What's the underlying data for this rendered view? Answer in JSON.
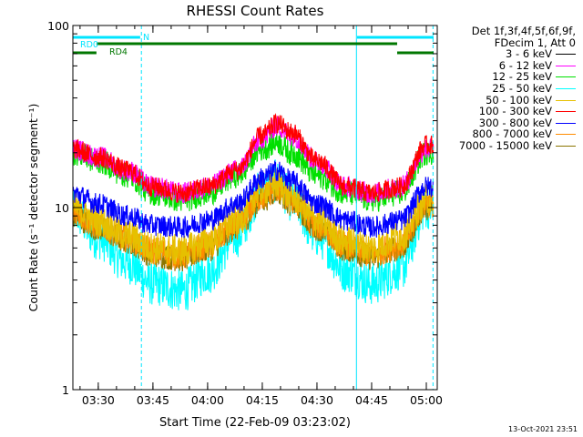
{
  "chart_data": {
    "type": "line",
    "title": "RHESSI Count Rates",
    "xlabel": "Start Time (22-Feb-09 03:23:02)",
    "ylabel": "Count Rate (s⁻¹ detector segment⁻¹)",
    "yscale": "log",
    "ylim": [
      1,
      100
    ],
    "xlim": [
      "03:23:02",
      "05:03:00"
    ],
    "x_ticks": [
      "03:30",
      "03:45",
      "04:00",
      "04:15",
      "04:30",
      "04:45",
      "05:00"
    ],
    "y_ticks": [
      "1",
      "10",
      "100"
    ],
    "grid": false,
    "legend_placement": "right",
    "legend_header": [
      "Det 1f,3f,4f,5f,6f,9f,",
      "FDecim 1, Att 0"
    ],
    "x_profile": [
      "03:23",
      "03:30",
      "03:38",
      "03:45",
      "03:53",
      "04:00",
      "04:08",
      "04:15",
      "04:19",
      "04:23",
      "04:30",
      "04:38",
      "04:45",
      "04:53",
      "05:00"
    ],
    "series": [
      {
        "name": "3 - 6 keV",
        "color": "#000000",
        "visible": false,
        "values": []
      },
      {
        "name": "6 - 12 keV",
        "color": "#ff00ff",
        "values": [
          21,
          19,
          16,
          13,
          12,
          13,
          16,
          24,
          28,
          25,
          18,
          13,
          12,
          13,
          21
        ]
      },
      {
        "name": "12 - 25 keV",
        "color": "#00e000",
        "values": [
          20,
          18,
          15,
          12,
          11,
          12,
          15,
          21,
          23,
          20,
          15,
          12,
          11,
          12,
          20
        ]
      },
      {
        "name": "25 - 50 keV",
        "color": "#00ffff",
        "values": [
          9.5,
          6.8,
          5.0,
          3.8,
          3.5,
          4.4,
          7.0,
          12.5,
          14,
          11,
          7.0,
          4.5,
          3.8,
          4.6,
          10
        ]
      },
      {
        "name": "50 - 100 keV",
        "color": "#e6c000",
        "values": [
          10,
          8.5,
          7.0,
          6.0,
          5.8,
          6.5,
          8.5,
          12.5,
          13.5,
          11.5,
          8.5,
          6.5,
          6.0,
          7.0,
          11
        ]
      },
      {
        "name": "100 - 300 keV",
        "color": "#ff0000",
        "values": [
          21,
          19,
          16,
          13,
          12,
          13,
          16,
          25,
          29,
          26,
          18,
          13,
          12,
          13,
          22
        ]
      },
      {
        "name": "300 - 800 keV",
        "color": "#0000ff",
        "values": [
          12,
          10.5,
          9.0,
          8.0,
          7.8,
          8.5,
          10.5,
          14.5,
          16,
          14,
          10.5,
          8.5,
          7.8,
          8.5,
          13
        ]
      },
      {
        "name": "800 - 7000 keV",
        "color": "#ff8c00",
        "values": [
          9.5,
          8.0,
          6.8,
          5.8,
          5.5,
          6.2,
          8.0,
          11.5,
          12.8,
          11,
          8.0,
          6.2,
          5.6,
          6.3,
          10.5
        ]
      },
      {
        "name": "7000 - 15000 keV",
        "color": "#8b7500",
        "values": [
          9.0,
          7.7,
          6.5,
          5.5,
          5.2,
          5.9,
          7.7,
          11,
          12.3,
          10.5,
          7.7,
          5.9,
          5.3,
          6.0,
          10
        ]
      }
    ],
    "annotations": [
      {
        "label": "RD0",
        "color": "#00e5ff",
        "kind": "flag-bar",
        "segments": [
          [
            "03:23:02",
            "03:41:30"
          ],
          [
            "04:41:00",
            "05:02:00"
          ]
        ]
      },
      {
        "label": "N",
        "color": "#00e5ff",
        "kind": "text"
      },
      {
        "label": "RD4",
        "color": "#007700",
        "kind": "flag-bar",
        "segments": [
          [
            "03:23:02",
            "03:29:30"
          ],
          [
            "04:52:00",
            "05:02:00"
          ]
        ]
      },
      {
        "label": "",
        "color": "#007700",
        "kind": "flag-bar",
        "segments": [
          [
            "03:29:30",
            "04:52:00"
          ]
        ]
      }
    ],
    "vertical_lines": [
      {
        "time": "03:23:02",
        "style": "solid",
        "color": "#00e5ff"
      },
      {
        "time": "03:41:50",
        "style": "dashed",
        "color": "#00e5ff"
      },
      {
        "time": "04:40:50",
        "style": "solid",
        "color": "#00e5ff"
      },
      {
        "time": "05:01:50",
        "style": "dashed",
        "color": "#00e5ff"
      }
    ]
  },
  "footer": {
    "timestamp": "13-Oct-2021 23:51"
  }
}
